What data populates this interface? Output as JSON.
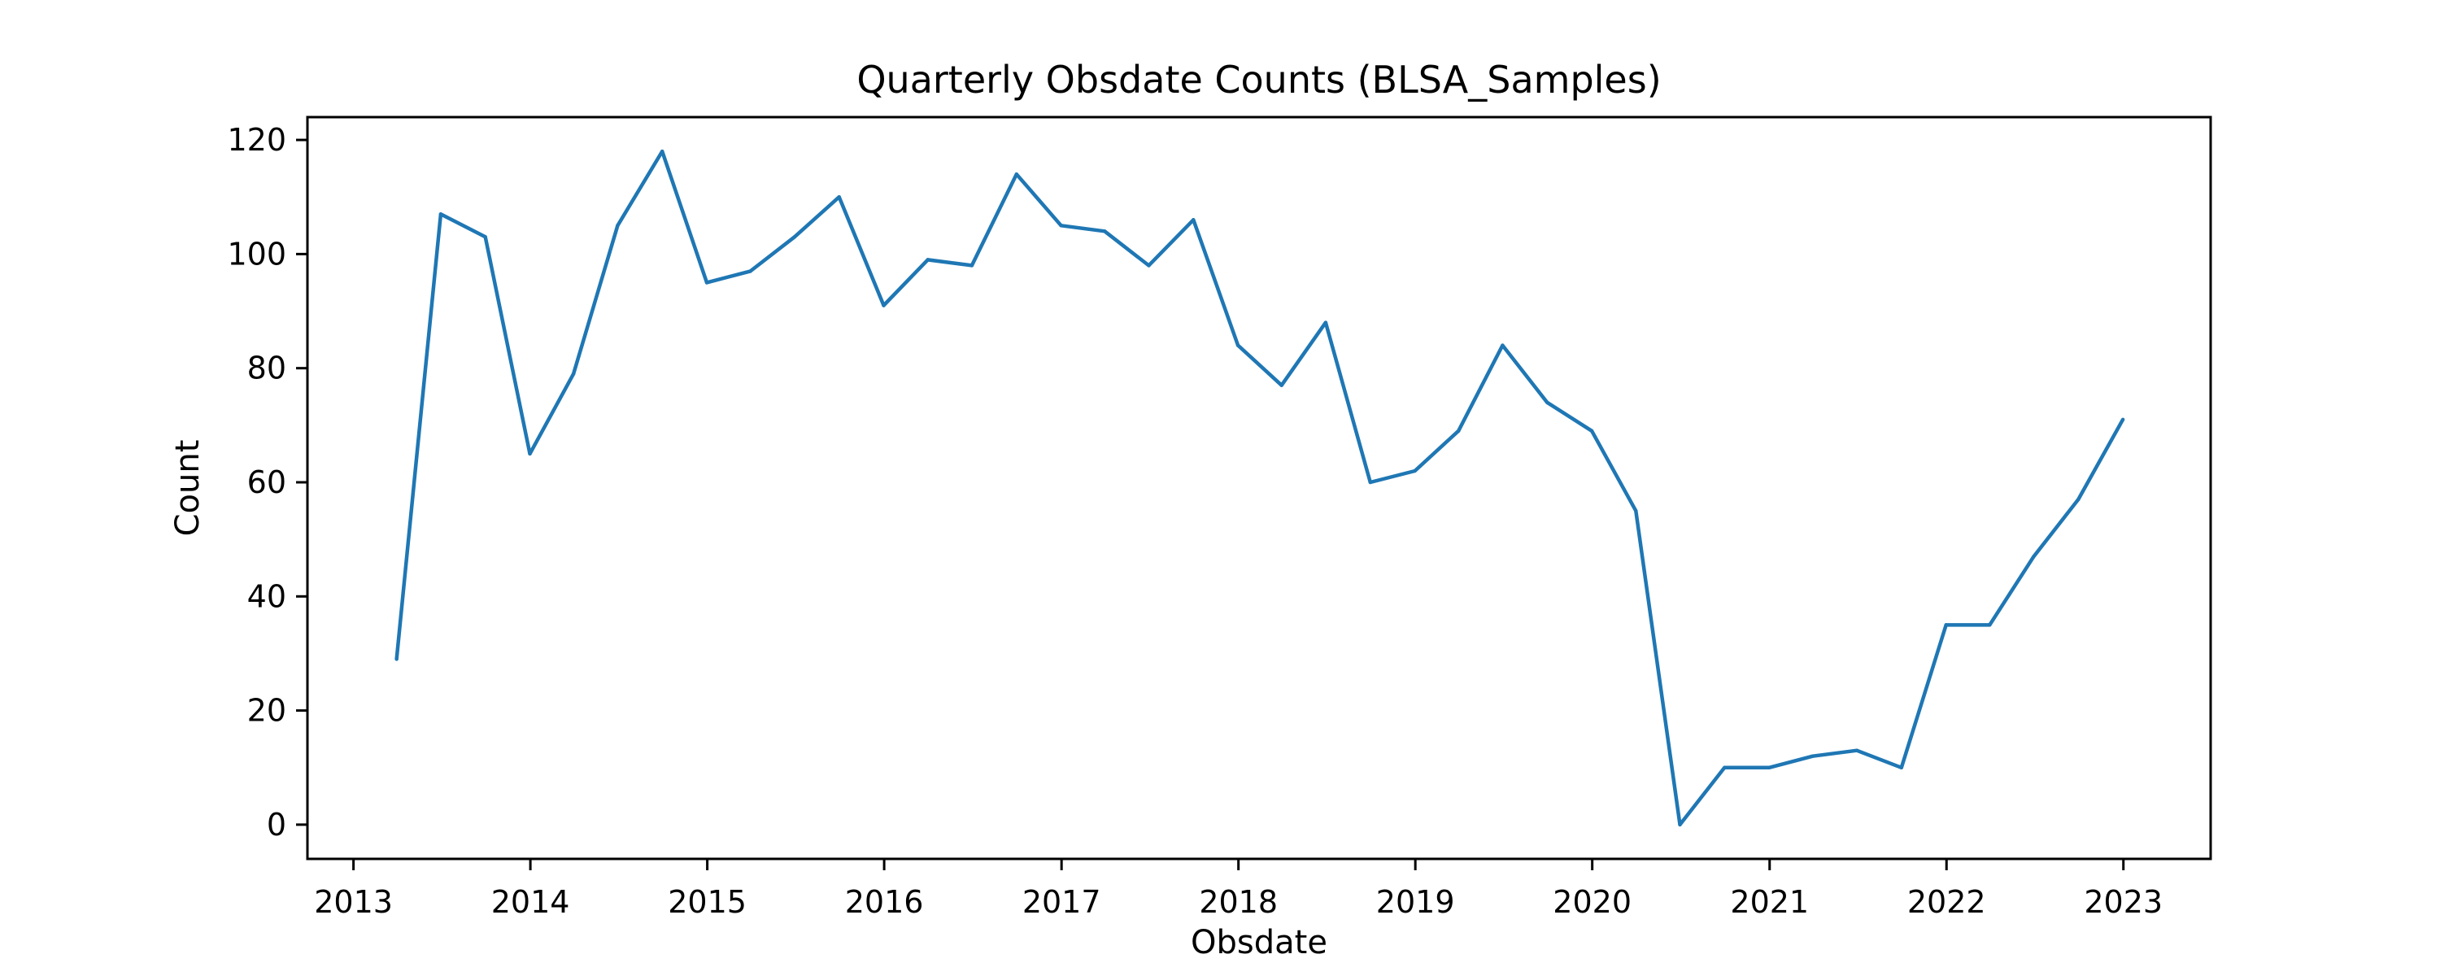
{
  "chart_data": {
    "type": "line",
    "title": "Quarterly Obsdate Counts (BLSA_Samples)",
    "xlabel": "Obsdate",
    "ylabel": "Count",
    "x_axis_type": "date",
    "xlim": [
      "2012-09-28",
      "2023-06-30"
    ],
    "ylim": [
      -6,
      124
    ],
    "xticks": [
      {
        "value": "2013-01-01",
        "label": "2013"
      },
      {
        "value": "2014-01-01",
        "label": "2014"
      },
      {
        "value": "2015-01-01",
        "label": "2015"
      },
      {
        "value": "2016-01-01",
        "label": "2016"
      },
      {
        "value": "2017-01-01",
        "label": "2017"
      },
      {
        "value": "2018-01-01",
        "label": "2018"
      },
      {
        "value": "2019-01-01",
        "label": "2019"
      },
      {
        "value": "2020-01-01",
        "label": "2020"
      },
      {
        "value": "2021-01-01",
        "label": "2021"
      },
      {
        "value": "2022-01-01",
        "label": "2022"
      },
      {
        "value": "2023-01-01",
        "label": "2023"
      }
    ],
    "yticks": [
      0,
      20,
      40,
      60,
      80,
      100,
      120
    ],
    "grid": false,
    "series": [
      {
        "color": "#1f77b4",
        "x": [
          "2013-03-31",
          "2013-06-30",
          "2013-09-30",
          "2013-12-31",
          "2014-03-31",
          "2014-06-30",
          "2014-09-30",
          "2014-12-31",
          "2015-03-31",
          "2015-06-30",
          "2015-09-30",
          "2015-12-31",
          "2016-03-31",
          "2016-06-30",
          "2016-09-30",
          "2016-12-31",
          "2017-03-31",
          "2017-06-30",
          "2017-09-30",
          "2017-12-31",
          "2018-03-31",
          "2018-06-30",
          "2018-09-30",
          "2018-12-31",
          "2019-03-31",
          "2019-06-30",
          "2019-09-30",
          "2019-12-31",
          "2020-03-31",
          "2020-06-30",
          "2020-09-30",
          "2020-12-31",
          "2021-03-31",
          "2021-06-30",
          "2021-09-30",
          "2021-12-31",
          "2022-03-31",
          "2022-06-30",
          "2022-09-30",
          "2022-12-31"
        ],
        "y": [
          29,
          107,
          103,
          65,
          79,
          105,
          118,
          95,
          97,
          103,
          110,
          91,
          99,
          98,
          114,
          105,
          104,
          98,
          106,
          84,
          77,
          88,
          60,
          62,
          69,
          84,
          74,
          69,
          55,
          0,
          10,
          10,
          12,
          13,
          10,
          35,
          35,
          47,
          57,
          71
        ]
      }
    ]
  }
}
